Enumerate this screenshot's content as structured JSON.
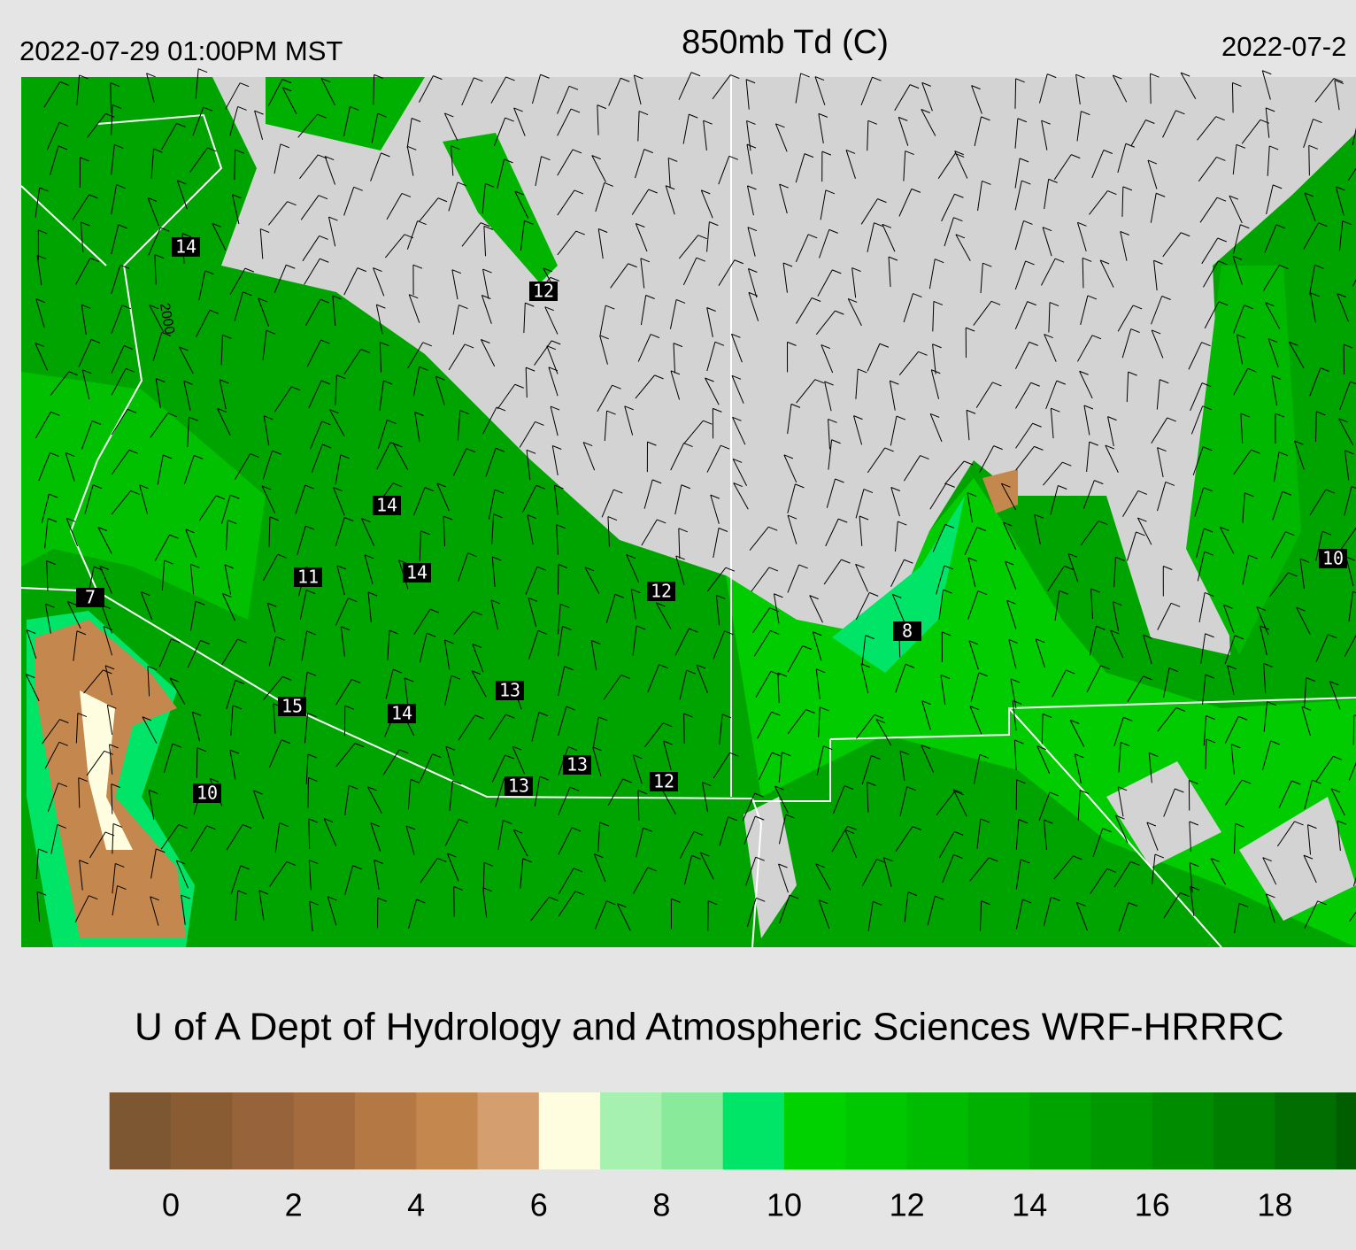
{
  "header": {
    "left": "2022-07-29 01:00PM MST",
    "title": "850mb Td (C)",
    "right": "2022-07-2"
  },
  "map": {
    "labels": [
      "14",
      "12",
      "14",
      "11",
      "14",
      "7",
      "12",
      "15",
      "14",
      "13",
      "13",
      "13",
      "12",
      "10",
      "8",
      "10"
    ],
    "contour_label": "2000"
  },
  "footer": "U of A Dept of Hydrology and Atmospheric Sciences WRF-HRRRC",
  "colorbar": {
    "ticks": [
      0,
      2,
      4,
      6,
      8,
      10,
      12,
      14,
      16,
      18
    ],
    "colors": [
      "#7d5632",
      "#8a5c34",
      "#96633a",
      "#a46c3e",
      "#b47844",
      "#c4874d",
      "#d49e6e",
      "#fefde0",
      "#a6f0b0",
      "#8aea9c",
      "#00e468",
      "#00d200",
      "#00c800",
      "#00bc00",
      "#00b000",
      "#00a400",
      "#009800",
      "#008c00",
      "#007e00",
      "#006e00",
      "#005e00"
    ]
  }
}
